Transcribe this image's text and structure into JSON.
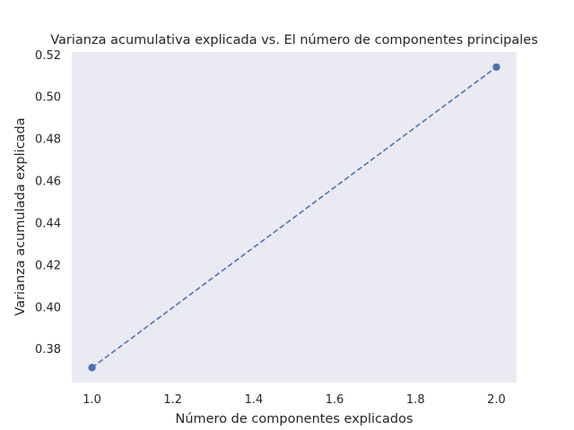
{
  "chart_data": {
    "type": "line",
    "title": "Varianza acumulativa explicada vs. El número de componentes principales",
    "xlabel": "Número de componentes explicados",
    "ylabel": "Varianza acumulada explicada",
    "x": [
      1.0,
      2.0
    ],
    "series": [
      {
        "values": [
          0.371,
          0.514
        ],
        "color": "#4c72b0",
        "line_style": "dashed",
        "marker": "circle"
      }
    ],
    "xlim": [
      0.95,
      2.05
    ],
    "ylim": [
      0.3639,
      0.5212
    ],
    "x_ticks": [
      1.0,
      1.2,
      1.4,
      1.6,
      1.8,
      2.0
    ],
    "x_tick_labels": [
      "1.0",
      "1.2",
      "1.4",
      "1.6",
      "1.8",
      "2.0"
    ],
    "y_ticks": [
      0.38,
      0.4,
      0.42,
      0.44,
      0.46,
      0.48,
      0.5,
      0.52
    ],
    "y_tick_labels": [
      "0.38",
      "0.40",
      "0.42",
      "0.44",
      "0.46",
      "0.48",
      "0.50",
      "0.52"
    ],
    "grid": false,
    "plot_background": "#eaeaf2"
  }
}
